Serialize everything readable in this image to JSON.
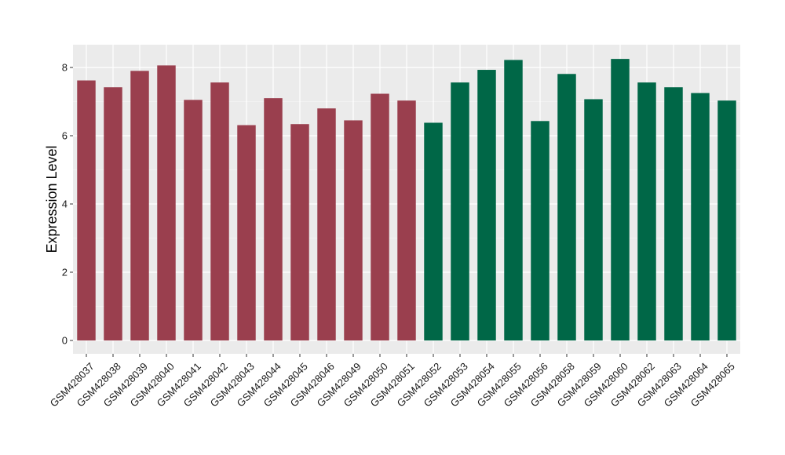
{
  "chart_data": {
    "type": "bar",
    "ylabel": "Expression Level",
    "xlabel": "",
    "title": "",
    "ylim": [
      0,
      8.6
    ],
    "yticks": [
      0,
      2,
      4,
      6,
      8
    ],
    "grid": true,
    "legend": "none",
    "colors": {
      "panel_bg": "#ebebeb",
      "grid_major": "#ffffff",
      "group1": "#9a3f4e",
      "group2": "#006747"
    },
    "categories": [
      "GSM428037",
      "GSM428038",
      "GSM428039",
      "GSM428040",
      "GSM428041",
      "GSM428042",
      "GSM428043",
      "GSM428044",
      "GSM428045",
      "GSM428046",
      "GSM428049",
      "GSM428050",
      "GSM428051",
      "GSM428052",
      "GSM428053",
      "GSM428054",
      "GSM428055",
      "GSM428056",
      "GSM428058",
      "GSM428059",
      "GSM428060",
      "GSM428062",
      "GSM428063",
      "GSM428064",
      "GSM428065"
    ],
    "values": [
      7.62,
      7.42,
      7.9,
      8.06,
      7.05,
      7.56,
      6.31,
      7.1,
      6.34,
      6.8,
      6.45,
      7.23,
      7.03,
      6.38,
      7.56,
      7.93,
      8.22,
      6.43,
      7.81,
      7.07,
      8.25,
      7.56,
      7.42,
      7.25,
      7.03
    ],
    "groups": [
      1,
      1,
      1,
      1,
      1,
      1,
      1,
      1,
      1,
      1,
      1,
      1,
      1,
      2,
      2,
      2,
      2,
      2,
      2,
      2,
      2,
      2,
      2,
      2,
      2
    ]
  }
}
